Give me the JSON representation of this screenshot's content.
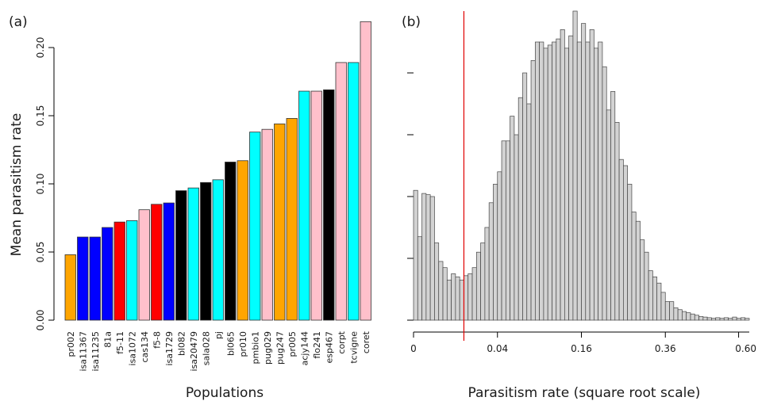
{
  "chart_data": [
    {
      "type": "bar",
      "panel_label": "(a)",
      "xlabel": "Populations",
      "ylabel": "Mean parasitism rate",
      "ylim": [
        0,
        0.2
      ],
      "yticks": [
        "0.00",
        "0.05",
        "0.10",
        "0.15",
        "0.20"
      ],
      "categories": [
        "pr002",
        "isa11367",
        "isa11235",
        "81a",
        "f5-11",
        "isa1072",
        "cas134",
        "f5-8",
        "isa1729",
        "bl082",
        "isa20479",
        "sala028",
        "pj",
        "bl065",
        "pr010",
        "pmbio1",
        "pug029",
        "pug247",
        "pr005",
        "acjy144",
        "flo241",
        "esp467",
        "corpt",
        "tcvigne",
        "coret"
      ],
      "values": [
        0.048,
        0.061,
        0.061,
        0.068,
        0.072,
        0.073,
        0.081,
        0.085,
        0.086,
        0.095,
        0.097,
        0.101,
        0.103,
        0.116,
        0.117,
        0.138,
        0.14,
        0.144,
        0.148,
        0.168,
        0.168,
        0.169,
        0.189,
        0.189,
        0.219
      ],
      "bar_colors": [
        "#FFA500",
        "#0000FF",
        "#0000FF",
        "#0000FF",
        "#FF0000",
        "#00FFFF",
        "#FFC0CB",
        "#FF0000",
        "#0000FF",
        "#000000",
        "#00FFFF",
        "#000000",
        "#00FFFF",
        "#000000",
        "#FFA500",
        "#00FFFF",
        "#FFC0CB",
        "#FFA500",
        "#FFA500",
        "#00FFFF",
        "#FFC0CB",
        "#000000",
        "#FFC0CB",
        "#00FFFF",
        "#FFC0CB"
      ]
    },
    {
      "type": "histogram",
      "panel_label": "(b)",
      "xlabel": "Parasitism rate (square root scale)",
      "xticks": [
        0,
        0.04,
        0.16,
        0.36,
        0.6
      ],
      "xtick_labels": [
        "0",
        "0.04",
        "0.16",
        "0.36",
        "0.60"
      ],
      "bin_width_sqrt": 0.01,
      "bin_counts": [
        210,
        135,
        205,
        203,
        200,
        125,
        95,
        85,
        65,
        75,
        70,
        65,
        72,
        75,
        85,
        110,
        125,
        150,
        190,
        220,
        240,
        290,
        290,
        330,
        300,
        360,
        400,
        350,
        420,
        450,
        450,
        440,
        445,
        450,
        455,
        470,
        440,
        460,
        500,
        450,
        480,
        450,
        470,
        440,
        450,
        410,
        340,
        370,
        320,
        260,
        250,
        220,
        175,
        160,
        130,
        110,
        80,
        70,
        60,
        45,
        30,
        30,
        20,
        17,
        14,
        12,
        10,
        8,
        6,
        5,
        4,
        3,
        4,
        3,
        4,
        3,
        5,
        3,
        4,
        3
      ],
      "threshold_sqrt": 0.12,
      "threshold_color": "#E00000",
      "bar_color": "#D3D3D3"
    }
  ]
}
